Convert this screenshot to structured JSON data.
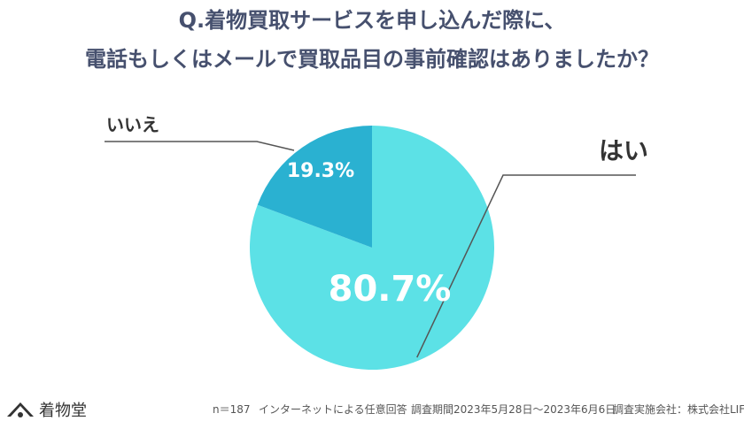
{
  "title_line1": "Q.着物買取サービスを申し込んだ際に、",
  "title_line2": "電話もしくはメールで買取品目の事前確認はありましたか？",
  "chart_data": {
    "type": "pie",
    "title": "Q.着物買取サービスを申し込んだ際に、電話もしくはメールで買取品目の事前確認はありましたか？",
    "slices": [
      {
        "label": "はい",
        "value": 80.7,
        "value_label": "80.7%",
        "color": "#5ce1e6"
      },
      {
        "label": "いいえ",
        "value": 19.3,
        "value_label": "19.3%",
        "color": "#2ab1d1"
      }
    ]
  },
  "footer": {
    "sample": "n＝187",
    "method": "インターネットによる任意回答",
    "period": "調査期間2023年5月28日〜2023年6月6日",
    "company": "調査実施会社：株式会社LIF"
  },
  "logo_text": "着物堂"
}
